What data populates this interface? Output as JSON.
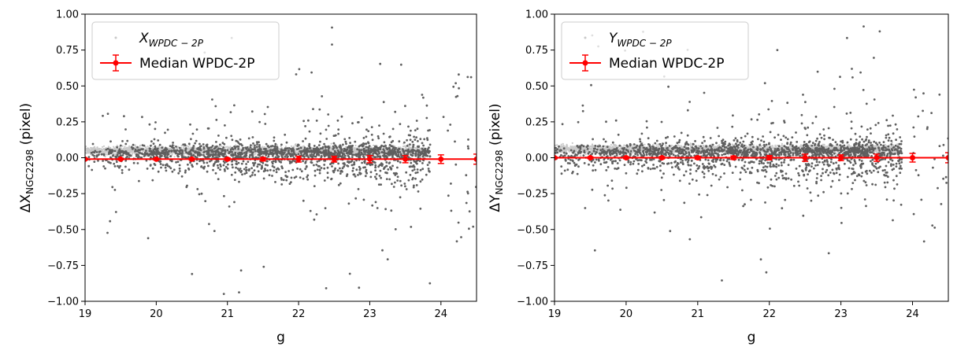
{
  "chart_data": [
    {
      "type": "scatter",
      "title": "",
      "xlabel": "g",
      "ylabel_main": "ΔX",
      "ylabel_sub": "NGC2298",
      "ylabel_unit": " (pixel)",
      "xlim": [
        19,
        24.5
      ],
      "ylim": [
        -1.0,
        1.0
      ],
      "x_ticks": [
        "19",
        "20",
        "21",
        "22",
        "23",
        "24"
      ],
      "y_ticks": [
        "−1.00",
        "−0.75",
        "−0.50",
        "−0.25",
        "0.00",
        "0.25",
        "0.50",
        "0.75",
        "1.00"
      ],
      "grid": false,
      "legend_position": "top-left",
      "series": [
        {
          "name_main": "X",
          "name_sub": "WPDC − 2P",
          "kind": "scatter",
          "color": "#5f5f5f",
          "light_color": "#c9c9c9",
          "core_y": 0.05
        },
        {
          "name": "Median WPDC-2P",
          "kind": "line-errorbar",
          "color": "#ff0000",
          "x": [
            19.0,
            19.5,
            20.0,
            20.5,
            21.0,
            21.5,
            22.0,
            22.5,
            23.0,
            23.5,
            24.0,
            24.5
          ],
          "y": [
            -0.01,
            -0.01,
            -0.01,
            -0.01,
            -0.01,
            -0.01,
            -0.01,
            -0.01,
            -0.01,
            -0.01,
            -0.01,
            -0.01
          ],
          "err": [
            0.005,
            0.005,
            0.006,
            0.007,
            0.009,
            0.012,
            0.02,
            0.02,
            0.025,
            0.025,
            0.03,
            0.035
          ]
        }
      ]
    },
    {
      "type": "scatter",
      "title": "",
      "xlabel": "g",
      "ylabel_main": "ΔY",
      "ylabel_sub": "NGC2298",
      "ylabel_unit": " (pixel)",
      "xlim": [
        19,
        24.5
      ],
      "ylim": [
        -1.0,
        1.0
      ],
      "x_ticks": [
        "19",
        "20",
        "21",
        "22",
        "23",
        "24"
      ],
      "y_ticks": [
        "−1.00",
        "−0.75",
        "−0.50",
        "−0.25",
        "0.00",
        "0.25",
        "0.50",
        "0.75",
        "1.00"
      ],
      "grid": false,
      "legend_position": "top-left",
      "series": [
        {
          "name_main": "Y",
          "name_sub": "WPDC − 2P",
          "kind": "scatter",
          "color": "#5f5f5f",
          "light_color": "#c9c9c9",
          "core_y": 0.06
        },
        {
          "name": "Median WPDC-2P",
          "kind": "line-errorbar",
          "color": "#ff0000",
          "x": [
            19.0,
            19.5,
            20.0,
            20.5,
            21.0,
            21.5,
            22.0,
            22.5,
            23.0,
            23.5,
            24.0,
            24.5
          ],
          "y": [
            0.0,
            0.0,
            0.0,
            0.0,
            0.0,
            0.0,
            0.0,
            0.0,
            0.0,
            0.0,
            0.0,
            0.0
          ],
          "err": [
            0.005,
            0.006,
            0.007,
            0.008,
            0.01,
            0.012,
            0.015,
            0.025,
            0.02,
            0.025,
            0.03,
            0.035
          ]
        }
      ]
    }
  ]
}
